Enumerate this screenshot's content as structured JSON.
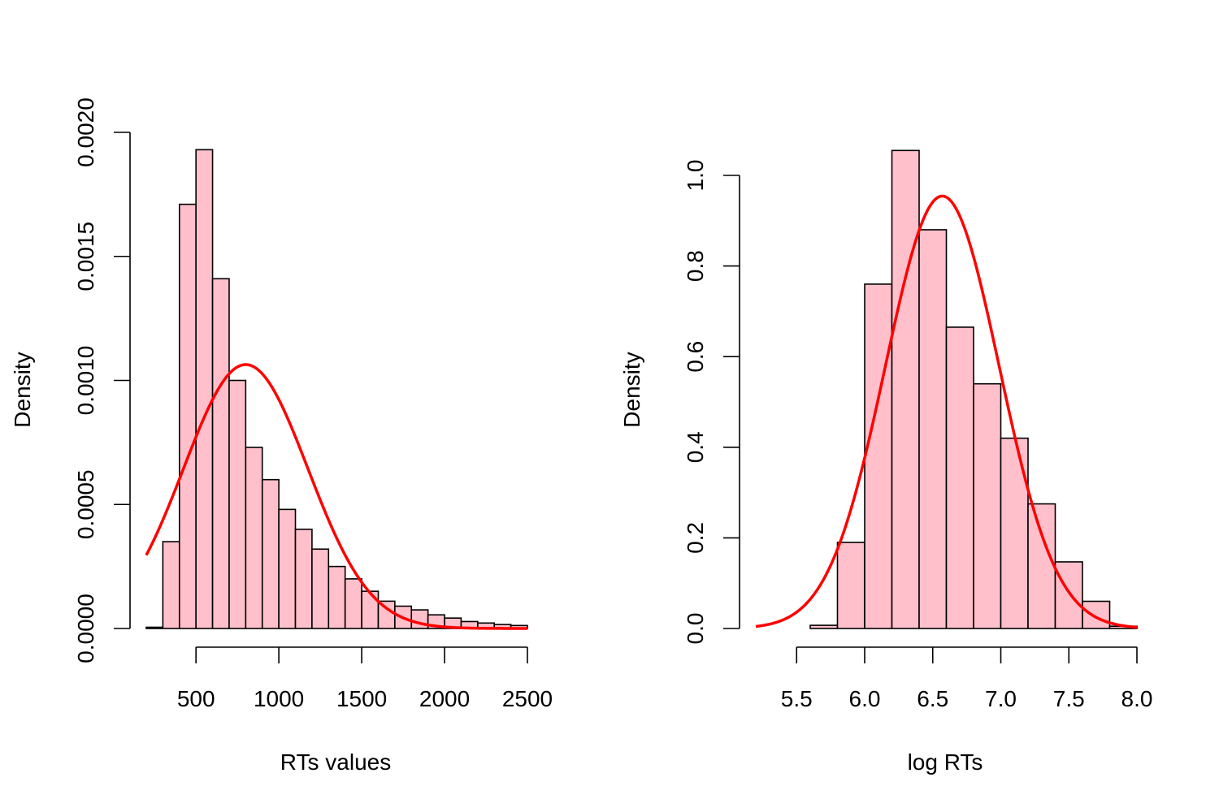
{
  "colors": {
    "bar_fill": "#FFC0CB",
    "bar_stroke": "#000000",
    "curve": "#FF0000",
    "axis": "#000000",
    "background": "#FFFFFF"
  },
  "chart_data": [
    {
      "type": "bar",
      "histogram": true,
      "title": "",
      "xlabel": "RTs values",
      "ylabel": "Density",
      "xlim": [
        200,
        2500
      ],
      "ylim": [
        0,
        0.002
      ],
      "x_ticks": [
        500,
        1000,
        1500,
        2000,
        2500
      ],
      "x_tick_labels": [
        "500",
        "1000",
        "1500",
        "2000",
        "2500"
      ],
      "y_ticks": [
        0,
        0.0005,
        0.001,
        0.0015,
        0.002
      ],
      "y_tick_labels": [
        "0.0000",
        "0.0005",
        "0.0010",
        "0.0015",
        "0.0020"
      ],
      "bins": [
        {
          "x0": 200,
          "x1": 300,
          "density": 5e-06
        },
        {
          "x0": 300,
          "x1": 400,
          "density": 0.00035
        },
        {
          "x0": 400,
          "x1": 500,
          "density": 0.00171
        },
        {
          "x0": 500,
          "x1": 600,
          "density": 0.00193
        },
        {
          "x0": 600,
          "x1": 700,
          "density": 0.00141
        },
        {
          "x0": 700,
          "x1": 800,
          "density": 0.001
        },
        {
          "x0": 800,
          "x1": 900,
          "density": 0.00073
        },
        {
          "x0": 900,
          "x1": 1000,
          "density": 0.0006
        },
        {
          "x0": 1000,
          "x1": 1100,
          "density": 0.00048
        },
        {
          "x0": 1100,
          "x1": 1200,
          "density": 0.0004
        },
        {
          "x0": 1200,
          "x1": 1300,
          "density": 0.00032
        },
        {
          "x0": 1300,
          "x1": 1400,
          "density": 0.00025
        },
        {
          "x0": 1400,
          "x1": 1500,
          "density": 0.0002
        },
        {
          "x0": 1500,
          "x1": 1600,
          "density": 0.00015
        },
        {
          "x0": 1600,
          "x1": 1700,
          "density": 0.00011
        },
        {
          "x0": 1700,
          "x1": 1800,
          "density": 9e-05
        },
        {
          "x0": 1800,
          "x1": 1900,
          "density": 7.5e-05
        },
        {
          "x0": 1900,
          "x1": 2000,
          "density": 5.5e-05
        },
        {
          "x0": 2000,
          "x1": 2100,
          "density": 4.2e-05
        },
        {
          "x0": 2100,
          "x1": 2200,
          "density": 2.8e-05
        },
        {
          "x0": 2200,
          "x1": 2300,
          "density": 2.2e-05
        },
        {
          "x0": 2300,
          "x1": 2400,
          "density": 1.6e-05
        },
        {
          "x0": 2400,
          "x1": 2500,
          "density": 1.2e-05
        }
      ],
      "curve": {
        "type": "normal",
        "mean": 800,
        "sd": 375,
        "x_range": [
          200,
          2500
        ]
      }
    },
    {
      "type": "bar",
      "histogram": true,
      "title": "",
      "xlabel": "log RTs",
      "ylabel": "Density",
      "xlim": [
        5.2,
        8.0
      ],
      "ylim": [
        0,
        1.0
      ],
      "x_ticks": [
        5.5,
        6.0,
        6.5,
        7.0,
        7.5,
        8.0
      ],
      "x_tick_labels": [
        "5.5",
        "6.0",
        "6.5",
        "7.0",
        "7.5",
        "8.0"
      ],
      "y_ticks": [
        0,
        0.2,
        0.4,
        0.6,
        0.8,
        1.0
      ],
      "y_tick_labels": [
        "0.0",
        "0.2",
        "0.4",
        "0.6",
        "0.8",
        "1.0"
      ],
      "bins": [
        {
          "x0": 5.4,
          "x1": 5.6,
          "density": 0.0
        },
        {
          "x0": 5.6,
          "x1": 5.8,
          "density": 0.007
        },
        {
          "x0": 5.8,
          "x1": 6.0,
          "density": 0.19
        },
        {
          "x0": 6.0,
          "x1": 6.2,
          "density": 0.76
        },
        {
          "x0": 6.2,
          "x1": 6.4,
          "density": 1.055
        },
        {
          "x0": 6.4,
          "x1": 6.6,
          "density": 0.88
        },
        {
          "x0": 6.6,
          "x1": 6.8,
          "density": 0.665
        },
        {
          "x0": 6.8,
          "x1": 7.0,
          "density": 0.54
        },
        {
          "x0": 7.0,
          "x1": 7.2,
          "density": 0.42
        },
        {
          "x0": 7.2,
          "x1": 7.4,
          "density": 0.275
        },
        {
          "x0": 7.4,
          "x1": 7.6,
          "density": 0.147
        },
        {
          "x0": 7.6,
          "x1": 7.8,
          "density": 0.06
        },
        {
          "x0": 7.8,
          "x1": 8.0,
          "density": 0.005
        }
      ],
      "curve": {
        "type": "normal",
        "mean": 6.57,
        "sd": 0.418,
        "x_range": [
          5.2,
          8.0
        ]
      }
    }
  ]
}
